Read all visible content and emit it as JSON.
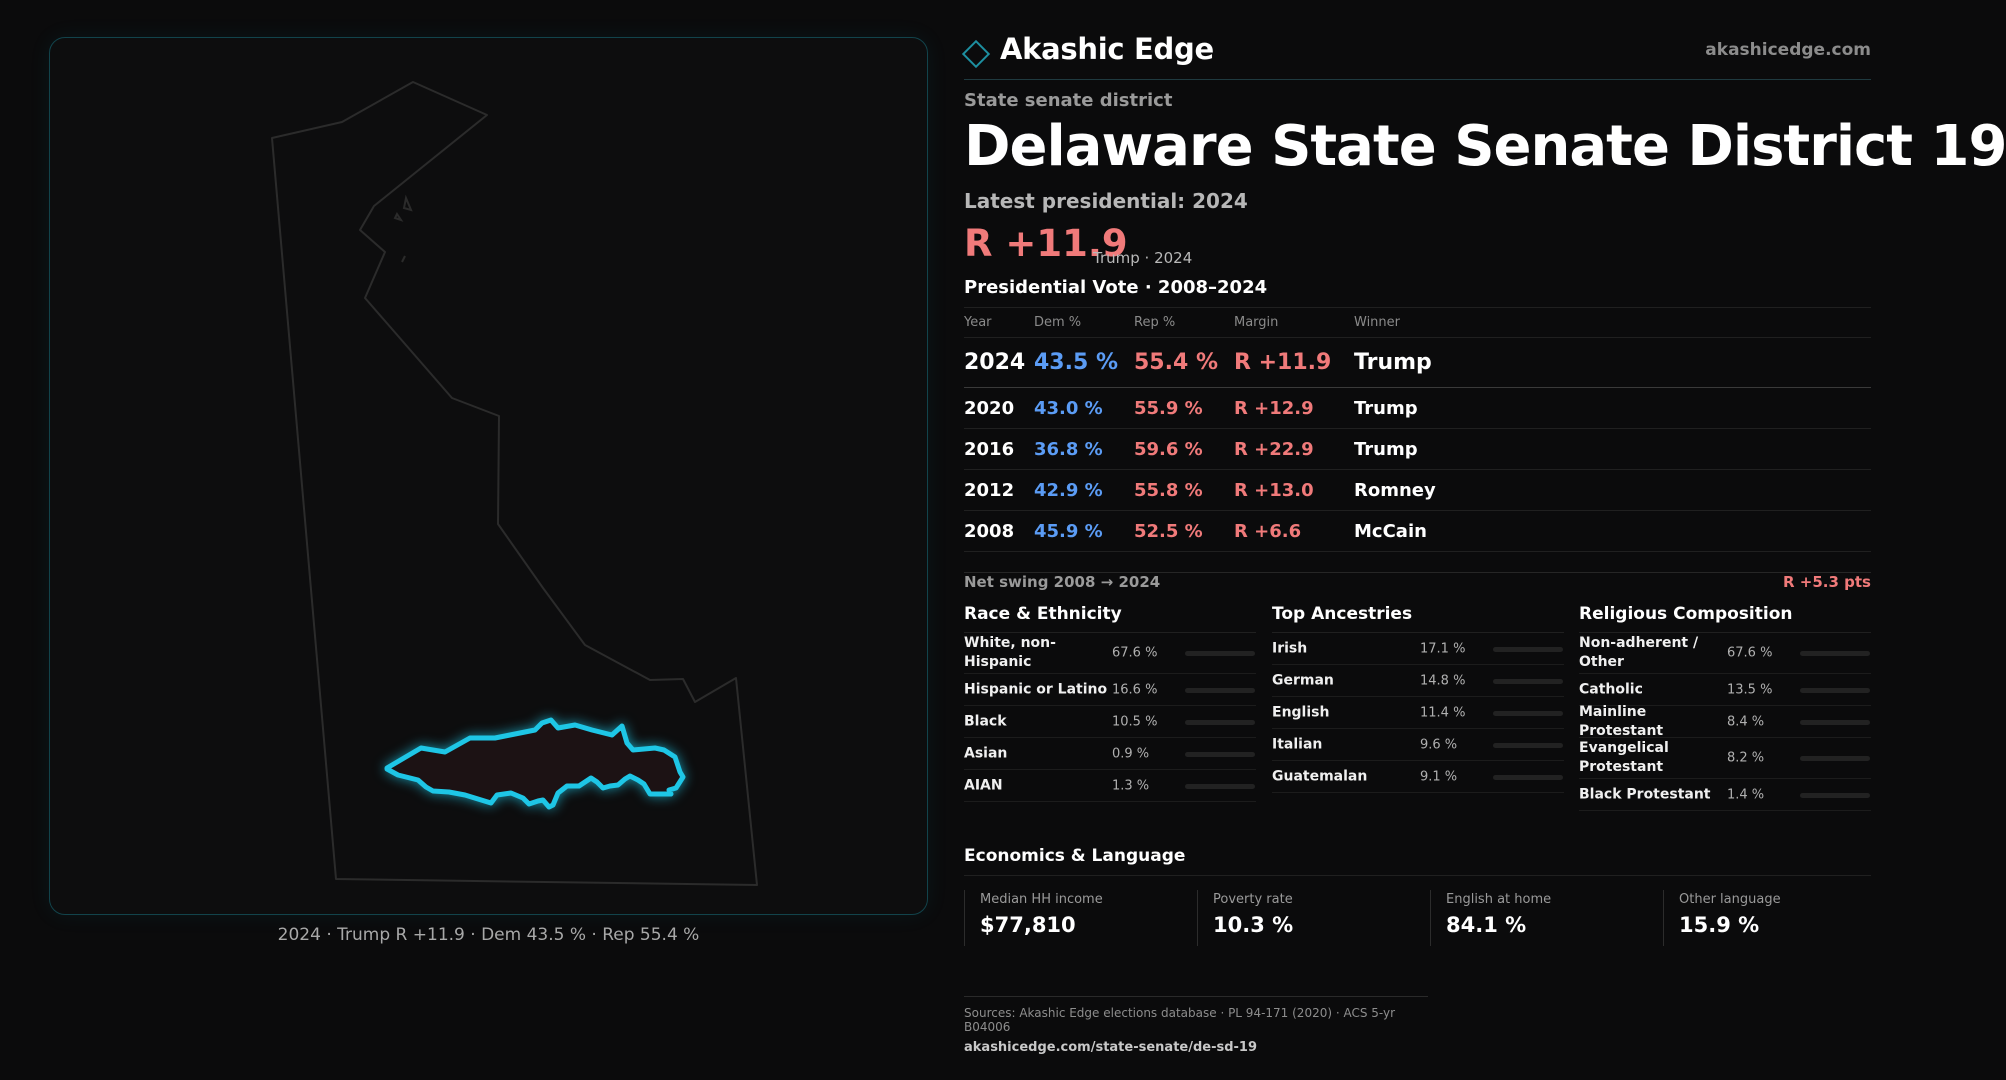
{
  "map": {
    "caption": "2024 · Trump R +11.9 · Dem 43.5 % · Rep 55.4 %",
    "state_outline_name": "Delaware",
    "highlight_color": "#1ec6e6"
  },
  "brand": {
    "name": "Akashic Edge",
    "url": "akashicedge.com",
    "icon": "diamond-icon"
  },
  "header": {
    "eyebrow": "State senate district",
    "title": "Delaware State Senate District 19",
    "latest_label": "Latest presidential: 2024",
    "margin": "R +11.9",
    "margin_note": "Trump · 2024"
  },
  "presidential": {
    "title": "Presidential Vote · 2008–2024",
    "columns": [
      "Year",
      "Dem %",
      "Rep %",
      "Margin",
      "Winner"
    ],
    "rows": [
      {
        "year": "2024",
        "dem": "43.5 %",
        "rep": "55.4 %",
        "margin": "R +11.9",
        "winner": "Trump"
      },
      {
        "year": "2020",
        "dem": "43.0 %",
        "rep": "55.9 %",
        "margin": "R +12.9",
        "winner": "Trump"
      },
      {
        "year": "2016",
        "dem": "36.8 %",
        "rep": "59.6 %",
        "margin": "R +22.9",
        "winner": "Trump"
      },
      {
        "year": "2012",
        "dem": "42.9 %",
        "rep": "55.8 %",
        "margin": "R +13.0",
        "winner": "Romney"
      },
      {
        "year": "2008",
        "dem": "45.9 %",
        "rep": "52.5 %",
        "margin": "R +6.6",
        "winner": "McCain"
      }
    ],
    "swing_label": "Net swing 2008 → 2024",
    "swing_value": "R +5.3 pts"
  },
  "demographics": [
    {
      "title": "Race & Ethnicity",
      "rows": [
        {
          "label": "White, non-Hispanic",
          "value": "67.6 %",
          "share": 0.676,
          "color": "#8a93a6"
        },
        {
          "label": "Hispanic or Latino",
          "value": "16.6 %",
          "share": 0.166,
          "color": "#e5a21a"
        },
        {
          "label": "Black",
          "value": "10.5 %",
          "share": 0.105,
          "color": "#8f7ef0"
        },
        {
          "label": "Asian",
          "value": "0.9 %",
          "share": 0.009,
          "color": "#3fbf8a"
        },
        {
          "label": "AIAN",
          "value": "1.3 %",
          "share": 0.013,
          "color": "#d96b3a"
        }
      ]
    },
    {
      "title": "Top Ancestries",
      "rows": [
        {
          "label": "Irish",
          "value": "17.1 %",
          "share": 0.171,
          "color": "#8a93a6"
        },
        {
          "label": "German",
          "value": "14.8 %",
          "share": 0.148,
          "color": "#8a93a6"
        },
        {
          "label": "English",
          "value": "11.4 %",
          "share": 0.114,
          "color": "#8a93a6"
        },
        {
          "label": "Italian",
          "value": "9.6 %",
          "share": 0.096,
          "color": "#8a93a6"
        },
        {
          "label": "Guatemalan",
          "value": "9.1 %",
          "share": 0.091,
          "color": "#e5a21a"
        }
      ]
    },
    {
      "title": "Religious Composition",
      "rows": [
        {
          "label": "Non-adherent / Other",
          "value": "67.6 %",
          "share": 0.676,
          "color": "#8a93a6"
        },
        {
          "label": "Catholic",
          "value": "13.5 %",
          "share": 0.135,
          "color": "#e5a21a"
        },
        {
          "label": "Mainline Protestant",
          "value": "8.4 %",
          "share": 0.084,
          "color": "#5b9cf5"
        },
        {
          "label": "Evangelical Protestant",
          "value": "8.2 %",
          "share": 0.082,
          "color": "#f06a7a"
        },
        {
          "label": "Black Protestant",
          "value": "1.4 %",
          "share": 0.014,
          "color": "#9a9a9a"
        }
      ]
    }
  ],
  "economics": {
    "title": "Economics & Language",
    "stats": [
      {
        "label": "Median HH income",
        "value": "$77,810"
      },
      {
        "label": "Poverty rate",
        "value": "10.3 %"
      },
      {
        "label": "English at home",
        "value": "84.1 %"
      },
      {
        "label": "Other language",
        "value": "15.9 %"
      }
    ]
  },
  "sources": {
    "line": "Sources: Akashic Edge elections database · PL 94-171 (2020) · ACS 5-yr B04006",
    "link": "akashicedge.com/state-senate/de-sd-19"
  },
  "colors": {
    "dem": "#5b9cf5",
    "rep": "#f07a7a",
    "accent": "#1d8fa0"
  }
}
